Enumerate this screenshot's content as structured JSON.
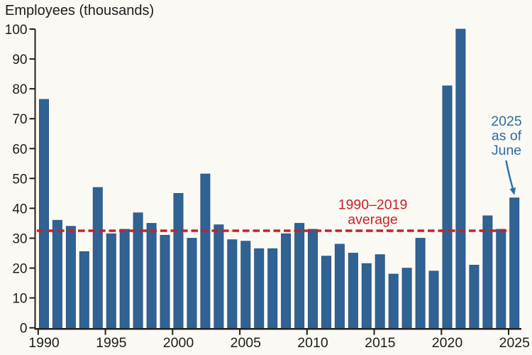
{
  "chart_data": {
    "type": "bar",
    "title": "Employees (thousands)",
    "xlabel": "",
    "ylabel": "Employees (thousands)",
    "x": [
      1990,
      1991,
      1992,
      1993,
      1994,
      1995,
      1996,
      1997,
      1998,
      1999,
      2000,
      2001,
      2002,
      2003,
      2004,
      2005,
      2006,
      2007,
      2008,
      2009,
      2010,
      2011,
      2012,
      2013,
      2014,
      2015,
      2016,
      2017,
      2018,
      2019,
      2020,
      2021,
      2022,
      2023,
      2024,
      2025
    ],
    "values": [
      76.5,
      36,
      34,
      25.5,
      47,
      31.5,
      33,
      38.5,
      35,
      31,
      45,
      30,
      51.5,
      34.5,
      29.5,
      29,
      26.5,
      26.5,
      31.5,
      35,
      33,
      24,
      28,
      25,
      21.5,
      24.5,
      18,
      20,
      30,
      19,
      81,
      100,
      21,
      37.5,
      33,
      43.5
    ],
    "ylim": [
      0,
      100
    ],
    "yticks": [
      0,
      10,
      20,
      30,
      40,
      50,
      60,
      70,
      80,
      90,
      100
    ],
    "xticks": [
      1990,
      1995,
      2000,
      2005,
      2010,
      2015,
      2020,
      2025
    ],
    "grid": false,
    "legend": "none",
    "average_line": {
      "value": 32.5,
      "style": "dashed",
      "label_lines": [
        "1990–2019",
        "average"
      ]
    },
    "annotation": {
      "lines": [
        "2025",
        "as of",
        "June"
      ],
      "target_year": 2025,
      "target_value": 43.5
    },
    "colors": {
      "background": "#fbf9f4",
      "bar": "#306294",
      "bar_edge": "#2a547e",
      "average_line": "#c82128",
      "average_label": "#c82128",
      "annotation": "#2e6da4",
      "axis": "#212121",
      "tick_label": "#1d1d1d"
    }
  }
}
